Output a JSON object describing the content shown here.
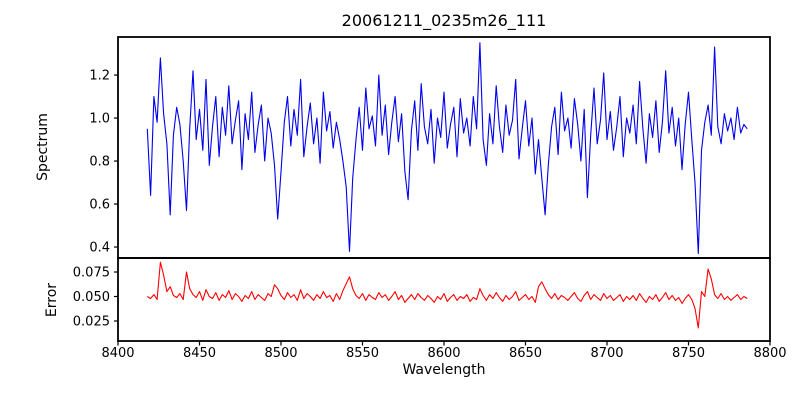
{
  "figure": {
    "title": "20061211_0235m26_111",
    "xlabel": "Wavelength",
    "top_ylabel": "Spectrum",
    "bottom_ylabel": "Error"
  },
  "chart_data": [
    {
      "type": "line",
      "name": "Spectrum",
      "title": "20061211_0235m26_111",
      "xlabel": "Wavelength",
      "ylabel": "Spectrum",
      "color": "#0000ee",
      "grid": false,
      "legend": "none",
      "xlim": [
        8400,
        8800
      ],
      "ylim": [
        0.349,
        1.377
      ],
      "xticks": [
        8400,
        8450,
        8500,
        8550,
        8600,
        8650,
        8700,
        8750,
        8800
      ],
      "xtick_labels": [
        "8400",
        "8450",
        "8500",
        "8550",
        "8600",
        "8650",
        "8700",
        "8750",
        "8800"
      ],
      "yticks": [
        0.4,
        0.6,
        0.8,
        1.0,
        1.2
      ],
      "ytick_labels": [
        "0.4",
        "0.6",
        "0.8",
        "1.0",
        "1.2"
      ],
      "x_start": 8418,
      "x_step": 2,
      "values": [
        0.95,
        0.64,
        1.1,
        0.98,
        1.28,
        1.02,
        0.88,
        0.55,
        0.92,
        1.05,
        0.97,
        0.8,
        0.57,
        0.95,
        1.22,
        0.9,
        1.04,
        0.85,
        1.18,
        0.78,
        0.96,
        1.1,
        0.82,
        1.05,
        0.92,
        1.15,
        0.88,
        0.99,
        1.08,
        0.76,
        1.02,
        0.9,
        1.12,
        0.84,
        0.97,
        1.06,
        0.8,
        1.0,
        0.93,
        0.78,
        0.53,
        0.75,
        0.98,
        1.1,
        0.87,
        1.04,
        0.92,
        1.18,
        0.82,
        0.96,
        1.07,
        0.88,
        1.0,
        0.79,
        1.12,
        0.94,
        1.03,
        0.86,
        0.98,
        0.9,
        0.8,
        0.68,
        0.38,
        0.72,
        0.9,
        1.05,
        0.85,
        1.14,
        0.95,
        1.01,
        0.87,
        1.2,
        0.92,
        1.06,
        0.83,
        0.98,
        1.1,
        0.89,
        1.02,
        0.75,
        0.62,
        0.94,
        1.08,
        0.85,
        1.16,
        0.96,
        0.88,
        1.04,
        0.79,
        1.0,
        0.91,
        1.12,
        0.86,
        0.97,
        1.05,
        0.82,
        1.09,
        0.93,
        1.0,
        0.87,
        1.1,
        0.95,
        1.35,
        0.9,
        0.78,
        1.02,
        0.88,
        1.15,
        0.96,
        0.84,
        1.06,
        0.92,
        0.99,
        1.18,
        0.81,
        0.95,
        1.08,
        0.87,
        1.0,
        0.74,
        0.9,
        0.72,
        0.55,
        0.78,
        0.96,
        1.05,
        0.83,
        1.12,
        0.94,
        1.0,
        0.86,
        1.09,
        0.97,
        0.8,
        1.04,
        0.63,
        0.92,
        1.14,
        0.88,
        0.99,
        1.21,
        0.9,
        1.03,
        0.85,
        0.96,
        1.1,
        0.82,
        1.0,
        0.93,
        1.06,
        0.88,
        1.17,
        0.95,
        0.79,
        1.02,
        0.91,
        1.08,
        0.84,
        0.98,
        1.22,
        0.93,
        1.05,
        0.87,
        1.0,
        0.76,
        0.97,
        1.12,
        0.9,
        0.7,
        0.37,
        0.85,
        0.98,
        1.06,
        0.92,
        1.33,
        0.96,
        0.88,
        1.02,
        0.94,
        1.0,
        0.9,
        1.05,
        0.93,
        0.97,
        0.95
      ]
    },
    {
      "type": "line",
      "name": "Error",
      "ylabel": "Error",
      "color": "#ff0000",
      "grid": false,
      "legend": "none",
      "xlim": [
        8400,
        8800
      ],
      "ylim": [
        0.0046,
        0.0893
      ],
      "yticks": [
        0.025,
        0.05,
        0.075
      ],
      "ytick_labels": [
        "0.025",
        "0.050",
        "0.075"
      ],
      "x_start": 8418,
      "x_step": 2,
      "values": [
        0.05,
        0.048,
        0.052,
        0.047,
        0.085,
        0.072,
        0.055,
        0.06,
        0.051,
        0.049,
        0.053,
        0.047,
        0.075,
        0.058,
        0.052,
        0.049,
        0.055,
        0.046,
        0.057,
        0.05,
        0.048,
        0.054,
        0.046,
        0.052,
        0.049,
        0.056,
        0.047,
        0.053,
        0.05,
        0.045,
        0.051,
        0.048,
        0.055,
        0.047,
        0.052,
        0.049,
        0.046,
        0.053,
        0.05,
        0.062,
        0.058,
        0.051,
        0.047,
        0.054,
        0.049,
        0.052,
        0.046,
        0.057,
        0.048,
        0.053,
        0.05,
        0.046,
        0.052,
        0.048,
        0.055,
        0.049,
        0.051,
        0.045,
        0.053,
        0.047,
        0.056,
        0.063,
        0.07,
        0.058,
        0.051,
        0.048,
        0.053,
        0.046,
        0.052,
        0.049,
        0.047,
        0.054,
        0.049,
        0.052,
        0.046,
        0.05,
        0.055,
        0.047,
        0.051,
        0.044,
        0.048,
        0.052,
        0.047,
        0.053,
        0.049,
        0.046,
        0.051,
        0.048,
        0.044,
        0.05,
        0.047,
        0.053,
        0.045,
        0.049,
        0.052,
        0.046,
        0.05,
        0.048,
        0.052,
        0.045,
        0.049,
        0.047,
        0.058,
        0.051,
        0.046,
        0.052,
        0.048,
        0.054,
        0.049,
        0.045,
        0.051,
        0.047,
        0.05,
        0.055,
        0.046,
        0.049,
        0.052,
        0.047,
        0.05,
        0.044,
        0.06,
        0.065,
        0.058,
        0.052,
        0.048,
        0.053,
        0.047,
        0.051,
        0.049,
        0.046,
        0.05,
        0.054,
        0.048,
        0.045,
        0.051,
        0.055,
        0.047,
        0.052,
        0.049,
        0.046,
        0.053,
        0.048,
        0.051,
        0.046,
        0.049,
        0.052,
        0.045,
        0.05,
        0.047,
        0.051,
        0.046,
        0.053,
        0.048,
        0.044,
        0.05,
        0.047,
        0.052,
        0.045,
        0.049,
        0.054,
        0.047,
        0.051,
        0.046,
        0.049,
        0.043,
        0.048,
        0.052,
        0.047,
        0.038,
        0.018,
        0.055,
        0.05,
        0.078,
        0.068,
        0.052,
        0.048,
        0.053,
        0.047,
        0.05,
        0.046,
        0.049,
        0.052,
        0.047,
        0.05,
        0.048
      ]
    }
  ]
}
